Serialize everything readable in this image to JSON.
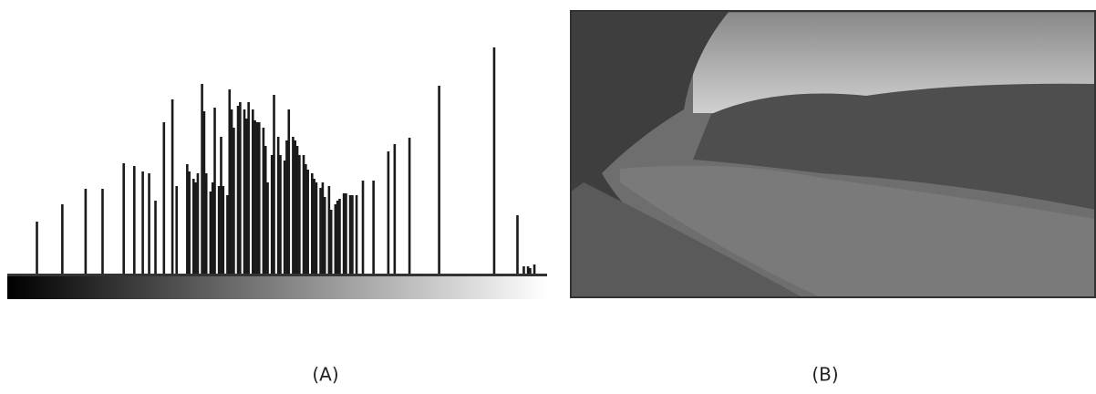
{
  "chart_data": {
    "type": "bar",
    "label": "(A)",
    "color": "#1a1a1a",
    "x": [
      14,
      26,
      37,
      45,
      55,
      60,
      64,
      67,
      70,
      74,
      78,
      80,
      85,
      86,
      88,
      89,
      90,
      92,
      93,
      94,
      96,
      97,
      98,
      100,
      101,
      102,
      104,
      105,
      106,
      107,
      109,
      110,
      112,
      113,
      114,
      116,
      117,
      118,
      119,
      121,
      122,
      123,
      125,
      126,
      128,
      129,
      131,
      132,
      133,
      135,
      136,
      137,
      138,
      140,
      141,
      142,
      144,
      145,
      146,
      148,
      149,
      150,
      152,
      153,
      155,
      156,
      157,
      159,
      160,
      162,
      163,
      165,
      168,
      173,
      180,
      183,
      190,
      204,
      230,
      241,
      244,
      246,
      247,
      249
    ],
    "values": [
      57,
      76,
      93,
      93,
      121,
      118,
      112,
      110,
      80,
      166,
      191,
      96,
      120,
      112,
      104,
      100,
      110,
      208,
      178,
      110,
      90,
      100,
      182,
      96,
      150,
      96,
      86,
      202,
      180,
      160,
      184,
      188,
      180,
      170,
      188,
      180,
      168,
      166,
      166,
      160,
      140,
      100,
      130,
      196,
      150,
      130,
      124,
      146,
      180,
      150,
      146,
      140,
      130,
      130,
      120,
      114,
      110,
      104,
      100,
      94,
      100,
      84,
      96,
      70,
      76,
      80,
      82,
      88,
      88,
      86,
      86,
      86,
      102,
      102,
      134,
      142,
      149,
      206,
      248,
      64,
      8,
      8,
      6,
      10
    ],
    "xlim": [
      0,
      255
    ],
    "ylim": [
      0,
      260
    ]
  },
  "image": {
    "label": "(B)"
  }
}
